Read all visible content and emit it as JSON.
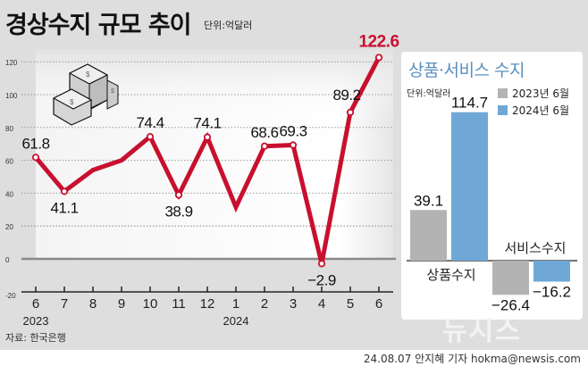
{
  "header": {
    "title": "경상수지 규모 추이",
    "unit": "단위:억달러"
  },
  "source": "자료: 한국은행",
  "byline": "24.08.07 안지혜 기자 hokma@newsis.com",
  "watermark": "뉴시스",
  "icon": "money-stack-icon",
  "colors": {
    "line": "#c8102e",
    "highlight_label": "#c8102e",
    "bar_2023": "#b3b3b3",
    "bar_2024": "#6fa8d6",
    "panel_title": "#5b8fc0",
    "background": "#dedede"
  },
  "panel": {
    "title": "상품·서비스 수지",
    "unit": "단위:억달러",
    "legend": [
      "2023년 6월",
      "2024년 6월"
    ],
    "categories": [
      "상품수지",
      "서비스수지"
    ]
  },
  "chart_data": [
    {
      "type": "line",
      "title": "경상수지 규모 추이",
      "subtitle": "단위:억달러",
      "xlabel": "",
      "ylabel": "",
      "categories": [
        "6",
        "7",
        "8",
        "9",
        "10",
        "11",
        "12",
        "1",
        "2",
        "3",
        "4",
        "5",
        "6"
      ],
      "year_labels": [
        {
          "label": "2023",
          "at": "6"
        },
        {
          "label": "2024",
          "at": "1"
        }
      ],
      "x": [
        "2023-06",
        "2023-07",
        "2023-08",
        "2023-09",
        "2023-10",
        "2023-11",
        "2023-12",
        "2024-01",
        "2024-02",
        "2024-03",
        "2024-04",
        "2024-05",
        "2024-06"
      ],
      "values": [
        61.8,
        41.1,
        54.1,
        60.0,
        74.4,
        38.9,
        74.1,
        31.5,
        68.6,
        69.3,
        -2.9,
        89.2,
        122.6
      ],
      "data_labels": [
        "61.8",
        "41.1",
        "",
        "",
        "74.4",
        "38.9",
        "74.1",
        "",
        "68.6",
        "69.3",
        "−2.9",
        "89.2",
        "122.6"
      ],
      "yticks": [
        -20,
        0,
        20,
        40,
        60,
        80,
        100,
        120
      ],
      "ylim": [
        -20,
        125
      ],
      "grid": true,
      "source": "자료: 한국은행"
    },
    {
      "type": "bar",
      "title": "상품·서비스 수지",
      "subtitle": "단위:억달러",
      "categories": [
        "상품수지",
        "서비스수지"
      ],
      "series": [
        {
          "name": "2023년 6월",
          "values": [
            39.1,
            -26.4
          ]
        },
        {
          "name": "2024년 6월",
          "values": [
            114.7,
            -16.2
          ]
        }
      ],
      "value_labels": [
        [
          "39.1",
          "−26.4"
        ],
        [
          "114.7",
          "−16.2"
        ]
      ],
      "legend_position": "top-right"
    }
  ]
}
